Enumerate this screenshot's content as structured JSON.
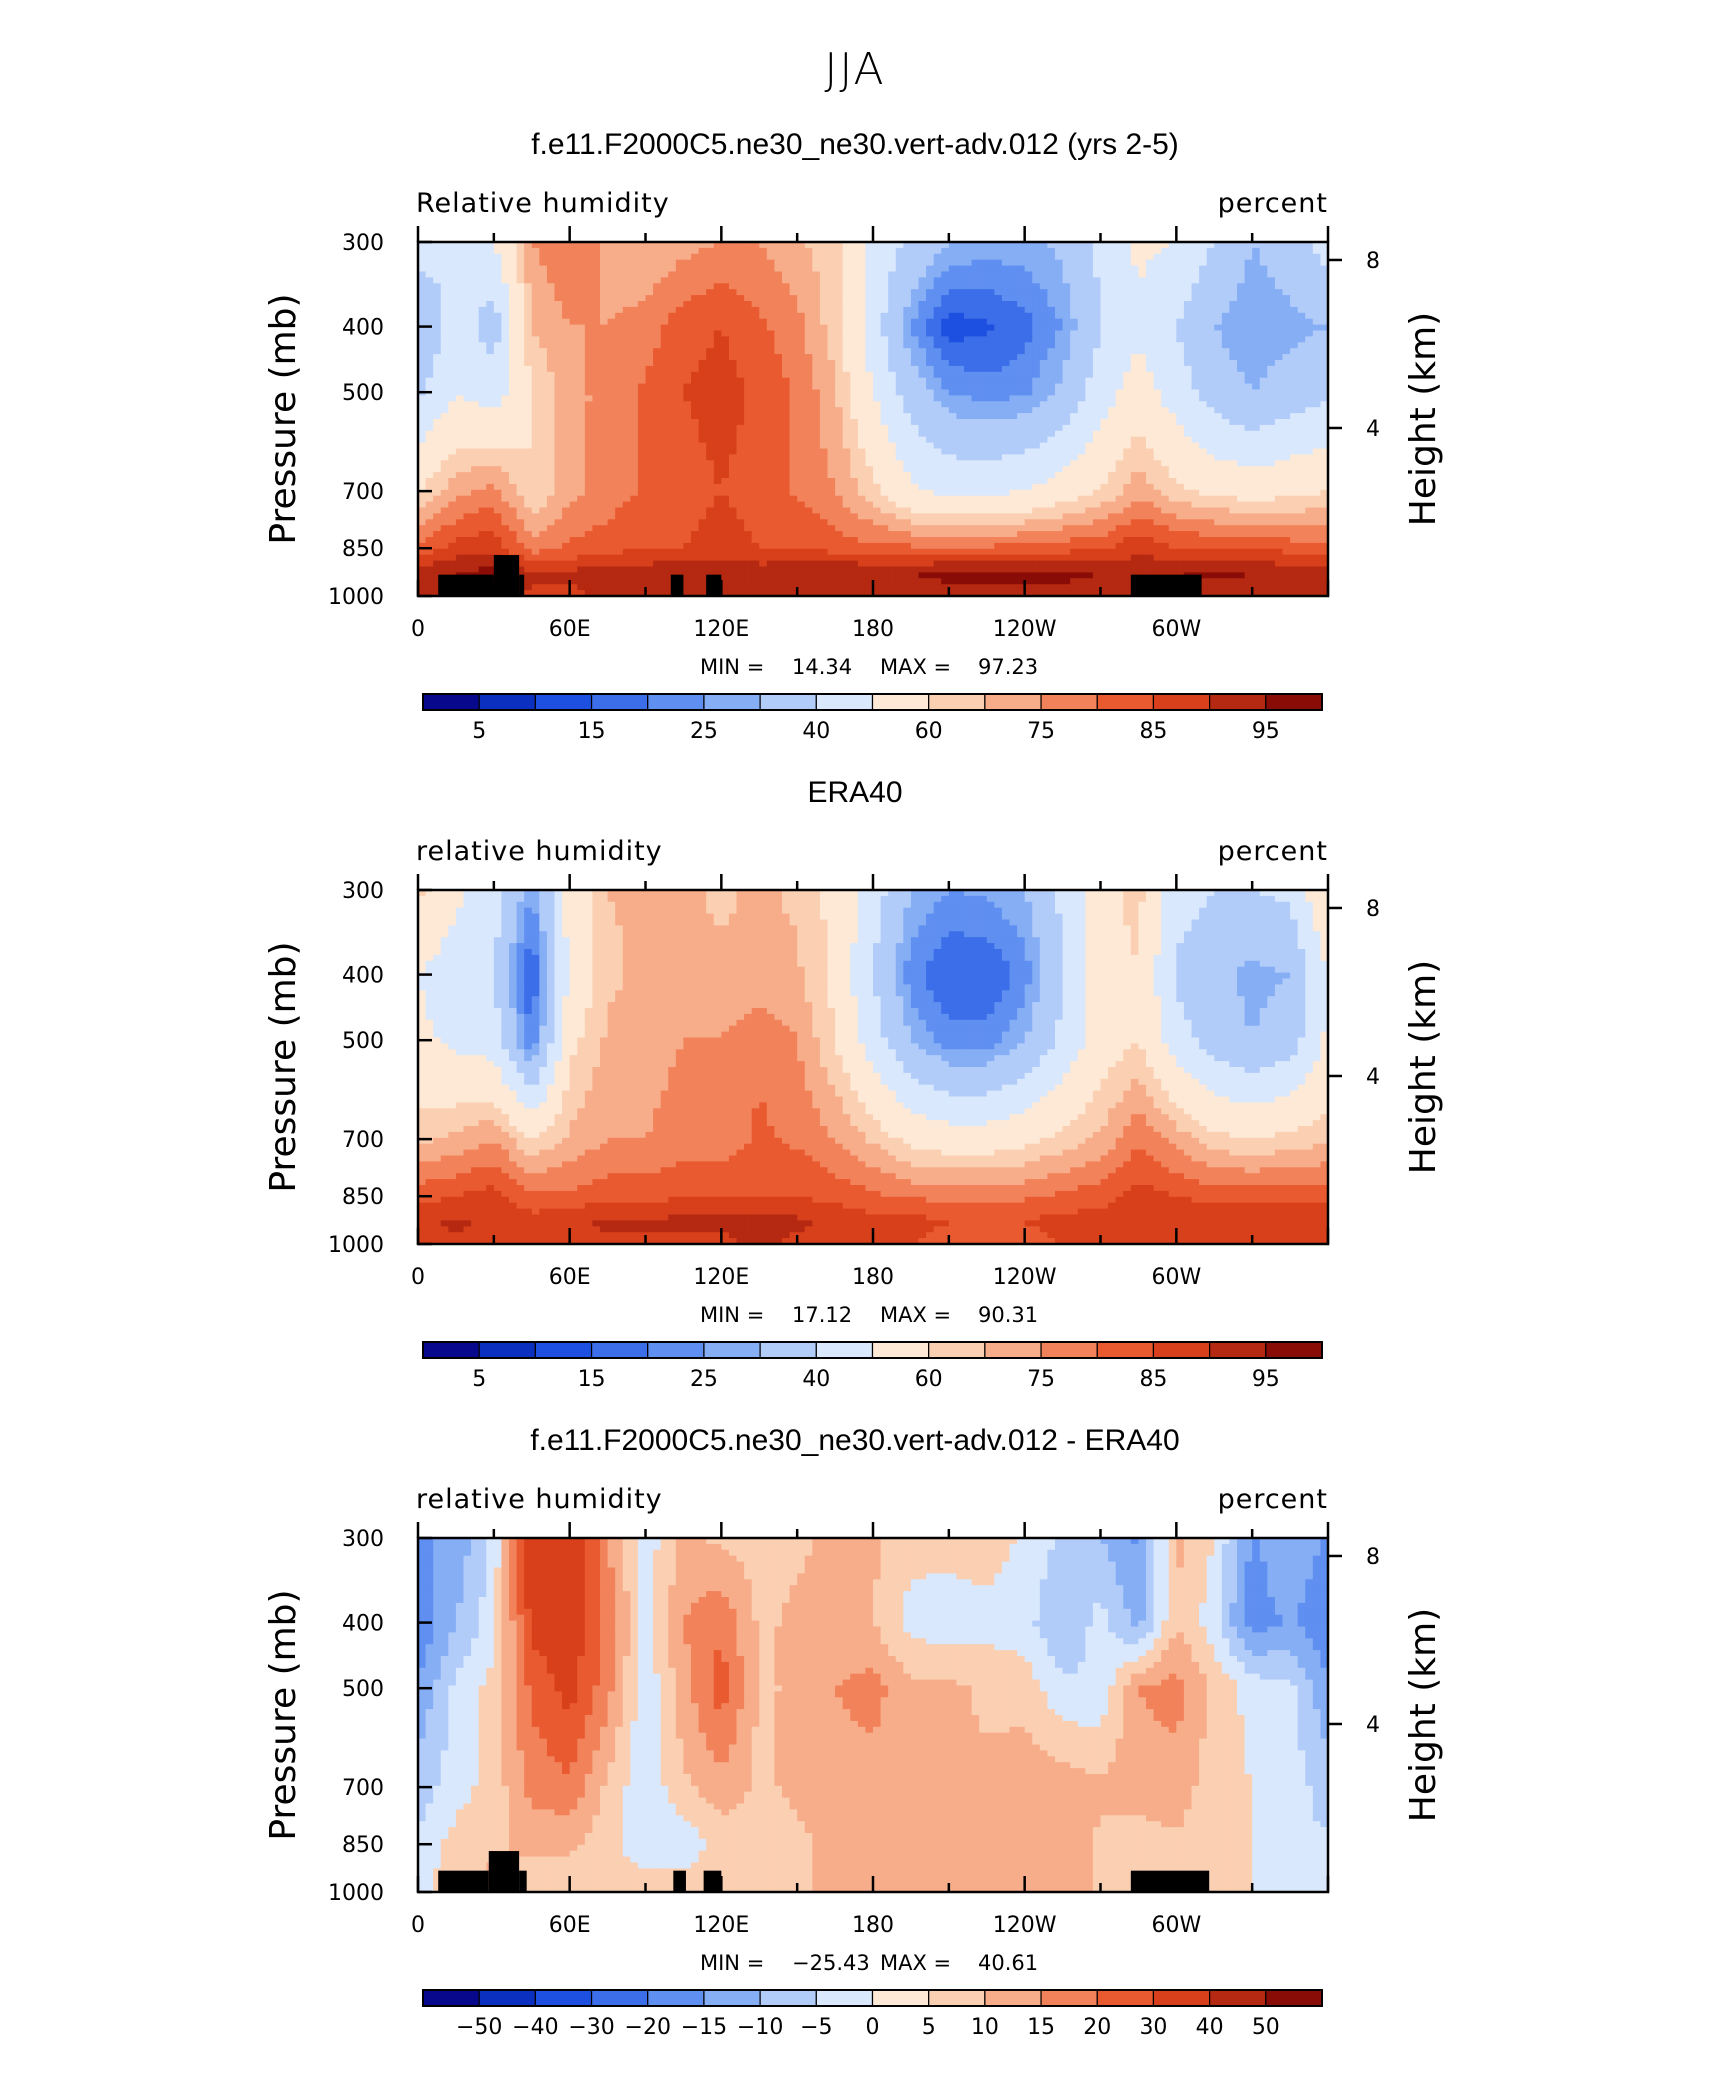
{
  "figure_title": "JJA",
  "colors": {
    "rh_levels": [
      5,
      10,
      15,
      20,
      25,
      30,
      40,
      50,
      60,
      65,
      70,
      75,
      80,
      85,
      90,
      95
    ],
    "diff_levels": [
      -50,
      -40,
      -30,
      -20,
      -15,
      -10,
      -5,
      0,
      5,
      10,
      15,
      20,
      30,
      40,
      50
    ],
    "palette": [
      "#08088c",
      "#0b2fbf",
      "#1d4fe0",
      "#3b6ee8",
      "#5f8ff0",
      "#86aef5",
      "#b2ccfa",
      "#d9e8fc",
      "#fde9d6",
      "#fbcfb2",
      "#f7ad8a",
      "#f2825a",
      "#ea5a30",
      "#d7401a",
      "#b52811",
      "#8a0c07"
    ]
  },
  "panels": [
    {
      "title": "f.e11.F2000C5.ne30_ne30.vert-adv.012 (yrs 2-5)",
      "left_label": "Relative humidity",
      "right_label": "percent",
      "y_axis_label": "Pressure (mb)",
      "y2_axis_label": "Height (km)",
      "stats": {
        "min_label": "MIN =",
        "min": "14.34",
        "max_label": "MAX =",
        "max": "97.23"
      },
      "colorbar_labels": [
        "5",
        "15",
        "25",
        "40",
        "60",
        "75",
        "85",
        "95"
      ]
    },
    {
      "title": "ERA40",
      "left_label": "relative humidity",
      "right_label": "percent",
      "y_axis_label": "Pressure (mb)",
      "y2_axis_label": "Height (km)",
      "stats": {
        "min_label": "MIN =",
        "min": "17.12",
        "max_label": "MAX =",
        "max": "90.31"
      },
      "colorbar_labels": [
        "5",
        "15",
        "25",
        "40",
        "60",
        "75",
        "85",
        "95"
      ]
    },
    {
      "title": "f.e11.F2000C5.ne30_ne30.vert-adv.012 - ERA40",
      "left_label": "relative humidity",
      "right_label": "percent",
      "y_axis_label": "Pressure (mb)",
      "y2_axis_label": "Height (km)",
      "stats": {
        "min_label": "MIN =",
        "min": "−25.43",
        "max_label": "MAX =",
        "max": "40.61"
      },
      "colorbar_labels": [
        "−50",
        "−40",
        "−30",
        "−20",
        "−15",
        "−10",
        "−5",
        "0",
        "5",
        "10",
        "15",
        "20",
        "30",
        "40",
        "50"
      ]
    }
  ],
  "chart_data": [
    {
      "type": "heatmap",
      "title": "f.e11.F2000C5.ne30_ne30.vert-adv.012 (yrs 2-5)",
      "xlabel": "",
      "ylabel": "Pressure (mb)",
      "y2label": "Height (km)",
      "x_ticks": [
        "0",
        "60E",
        "120E",
        "180",
        "120W",
        "60W"
      ],
      "y_ticks": [
        "300",
        "400",
        "500",
        "700",
        "850",
        "1000"
      ],
      "y2_ticks": [
        "4",
        "8"
      ],
      "x_range": [
        0,
        360
      ],
      "y_range": [
        1000,
        300
      ],
      "y_scale": "log",
      "x": [
        0,
        15,
        30,
        45,
        60,
        75,
        90,
        105,
        120,
        135,
        150,
        165,
        180,
        195,
        210,
        225,
        240,
        255,
        270,
        285,
        300,
        315,
        330,
        345,
        360
      ],
      "y": [
        300,
        400,
        500,
        700,
        850,
        925,
        1000
      ],
      "z": [
        [
          45,
          40,
          50,
          70,
          75,
          68,
          65,
          68,
          70,
          70,
          66,
          62,
          48,
          38,
          30,
          28,
          28,
          32,
          42,
          52,
          50,
          40,
          30,
          35,
          45
        ],
        [
          30,
          45,
          35,
          65,
          70,
          70,
          72,
          78,
          80,
          76,
          72,
          62,
          45,
          25,
          12,
          14,
          18,
          25,
          40,
          48,
          40,
          30,
          25,
          28,
          30
        ],
        [
          38,
          50,
          45,
          60,
          68,
          72,
          76,
          80,
          82,
          79,
          74,
          66,
          50,
          35,
          25,
          22,
          24,
          32,
          45,
          55,
          45,
          35,
          30,
          34,
          38
        ],
        [
          60,
          68,
          72,
          60,
          68,
          72,
          76,
          78,
          80,
          78,
          74,
          70,
          62,
          52,
          48,
          48,
          50,
          55,
          60,
          68,
          62,
          58,
          56,
          58,
          60
        ],
        [
          76,
          82,
          84,
          72,
          76,
          78,
          80,
          80,
          82,
          80,
          80,
          78,
          76,
          76,
          76,
          76,
          77,
          78,
          79,
          84,
          80,
          80,
          80,
          78,
          76
        ],
        [
          88,
          90,
          92,
          86,
          86,
          88,
          88,
          89,
          90,
          88,
          89,
          90,
          90,
          90,
          91,
          91,
          91,
          91,
          90,
          88,
          90,
          91,
          90,
          88,
          88
        ],
        [
          86,
          88,
          90,
          84,
          84,
          86,
          86,
          87,
          88,
          86,
          87,
          88,
          88,
          88,
          89,
          89,
          89,
          89,
          88,
          86,
          88,
          88,
          88,
          86,
          86
        ]
      ],
      "land_blocks": [
        {
          "x0": 8,
          "x1": 30,
          "y_top": 930
        },
        {
          "x0": 30,
          "x1": 40,
          "y_top": 870
        },
        {
          "x0": 40,
          "x1": 42,
          "y_top": 930
        },
        {
          "x0": 100,
          "x1": 105,
          "y_top": 930
        },
        {
          "x0": 114,
          "x1": 120,
          "y_top": 930
        },
        {
          "x0": 282,
          "x1": 310,
          "y_top": 930
        }
      ],
      "min": 14.34,
      "max": 97.23
    },
    {
      "type": "heatmap",
      "title": "ERA40",
      "xlabel": "",
      "ylabel": "Pressure (mb)",
      "y2label": "Height (km)",
      "x_ticks": [
        "0",
        "60E",
        "120E",
        "180",
        "120W",
        "60W"
      ],
      "y_ticks": [
        "300",
        "400",
        "500",
        "700",
        "850",
        "1000"
      ],
      "y2_ticks": [
        "4",
        "8"
      ],
      "x_range": [
        0,
        360
      ],
      "y_range": [
        1000,
        300
      ],
      "y_scale": "log",
      "x": [
        0,
        15,
        30,
        45,
        60,
        75,
        90,
        105,
        120,
        135,
        150,
        165,
        180,
        195,
        210,
        225,
        240,
        255,
        270,
        285,
        300,
        315,
        330,
        345,
        360
      ],
      "y": [
        300,
        400,
        500,
        700,
        850,
        925,
        1000
      ],
      "z": [
        [
          62,
          52,
          45,
          25,
          55,
          65,
          66,
          66,
          64,
          66,
          64,
          58,
          45,
          30,
          25,
          26,
          30,
          42,
          58,
          62,
          45,
          40,
          40,
          42,
          62
        ],
        [
          50,
          45,
          40,
          14,
          52,
          64,
          66,
          66,
          66,
          66,
          66,
          58,
          40,
          22,
          15,
          15,
          22,
          40,
          56,
          60,
          38,
          32,
          28,
          30,
          50
        ],
        [
          52,
          48,
          45,
          20,
          58,
          66,
          68,
          70,
          70,
          74,
          70,
          60,
          45,
          30,
          22,
          22,
          30,
          42,
          55,
          60,
          45,
          35,
          30,
          35,
          52
        ],
        [
          64,
          66,
          70,
          60,
          66,
          70,
          70,
          72,
          72,
          76,
          74,
          70,
          64,
          58,
          55,
          55,
          58,
          62,
          66,
          74,
          68,
          62,
          60,
          62,
          64
        ],
        [
          78,
          80,
          82,
          76,
          76,
          78,
          78,
          80,
          80,
          80,
          80,
          78,
          76,
          74,
          74,
          74,
          74,
          76,
          78,
          82,
          80,
          78,
          78,
          78,
          78
        ],
        [
          84,
          86,
          84,
          82,
          84,
          86,
          86,
          86,
          86,
          88,
          86,
          84,
          82,
          82,
          80,
          80,
          80,
          82,
          82,
          84,
          84,
          84,
          84,
          84,
          84
        ],
        [
          82,
          84,
          82,
          80,
          82,
          84,
          84,
          84,
          84,
          86,
          84,
          82,
          80,
          80,
          78,
          78,
          78,
          80,
          80,
          82,
          82,
          82,
          82,
          84,
          82
        ]
      ],
      "land_blocks": [],
      "min": 17.12,
      "max": 90.31
    },
    {
      "type": "heatmap",
      "title": "f.e11.F2000C5.ne30_ne30.vert-adv.012 - ERA40",
      "xlabel": "",
      "ylabel": "Pressure (mb)",
      "y2label": "Height (km)",
      "x_ticks": [
        "0",
        "60E",
        "120E",
        "180",
        "120W",
        "60W"
      ],
      "y_ticks": [
        "300",
        "400",
        "500",
        "700",
        "850",
        "1000"
      ],
      "y2_ticks": [
        "4",
        "8"
      ],
      "x_range": [
        0,
        360
      ],
      "y_range": [
        1000,
        300
      ],
      "y_scale": "log",
      "x": [
        0,
        15,
        30,
        45,
        60,
        75,
        90,
        105,
        120,
        135,
        150,
        165,
        180,
        195,
        210,
        225,
        240,
        255,
        270,
        285,
        300,
        315,
        330,
        345,
        360
      ],
      "y": [
        300,
        400,
        500,
        700,
        850,
        925,
        1000
      ],
      "z": [
        [
          -16,
          -14,
          -3,
          25,
          28,
          10,
          -3,
          6,
          4,
          3,
          4,
          6,
          6,
          2,
          2,
          3,
          -1,
          -6,
          -10,
          -16,
          6,
          0,
          -16,
          -10,
          -16
        ],
        [
          -20,
          -10,
          -2,
          22,
          24,
          14,
          -2,
          10,
          14,
          4,
          6,
          8,
          5,
          -2,
          -3,
          -2,
          -3,
          -10,
          -3,
          -12,
          5,
          -3,
          -18,
          -14,
          -20
        ],
        [
          -14,
          -4,
          2,
          16,
          22,
          12,
          -4,
          8,
          18,
          4,
          6,
          10,
          12,
          6,
          6,
          4,
          3,
          -4,
          -4,
          10,
          12,
          4,
          -2,
          -4,
          -14
        ],
        [
          -8,
          -2,
          2,
          12,
          14,
          4,
          -4,
          4,
          8,
          4,
          6,
          8,
          8,
          6,
          6,
          6,
          8,
          8,
          6,
          8,
          8,
          2,
          0,
          -2,
          -8
        ],
        [
          -4,
          2,
          4,
          6,
          6,
          2,
          -4,
          -4,
          2,
          2,
          4,
          6,
          6,
          6,
          6,
          8,
          10,
          10,
          4,
          2,
          4,
          2,
          0,
          -4,
          -4
        ],
        [
          -2,
          2,
          6,
          4,
          4,
          2,
          0,
          0,
          4,
          2,
          4,
          6,
          6,
          6,
          6,
          6,
          8,
          8,
          4,
          2,
          4,
          2,
          0,
          -2,
          -2
        ],
        [
          -2,
          2,
          6,
          4,
          4,
          2,
          0,
          0,
          4,
          2,
          4,
          6,
          6,
          6,
          6,
          6,
          8,
          8,
          4,
          2,
          4,
          2,
          0,
          -2,
          -2
        ]
      ],
      "land_blocks": [
        {
          "x0": 8,
          "x1": 28,
          "y_top": 930
        },
        {
          "x0": 28,
          "x1": 40,
          "y_top": 870
        },
        {
          "x0": 40,
          "x1": 43,
          "y_top": 930
        },
        {
          "x0": 101,
          "x1": 106,
          "y_top": 930
        },
        {
          "x0": 113,
          "x1": 120,
          "y_top": 930
        },
        {
          "x0": 282,
          "x1": 313,
          "y_top": 930
        }
      ],
      "min": -25.43,
      "max": 40.61
    }
  ]
}
